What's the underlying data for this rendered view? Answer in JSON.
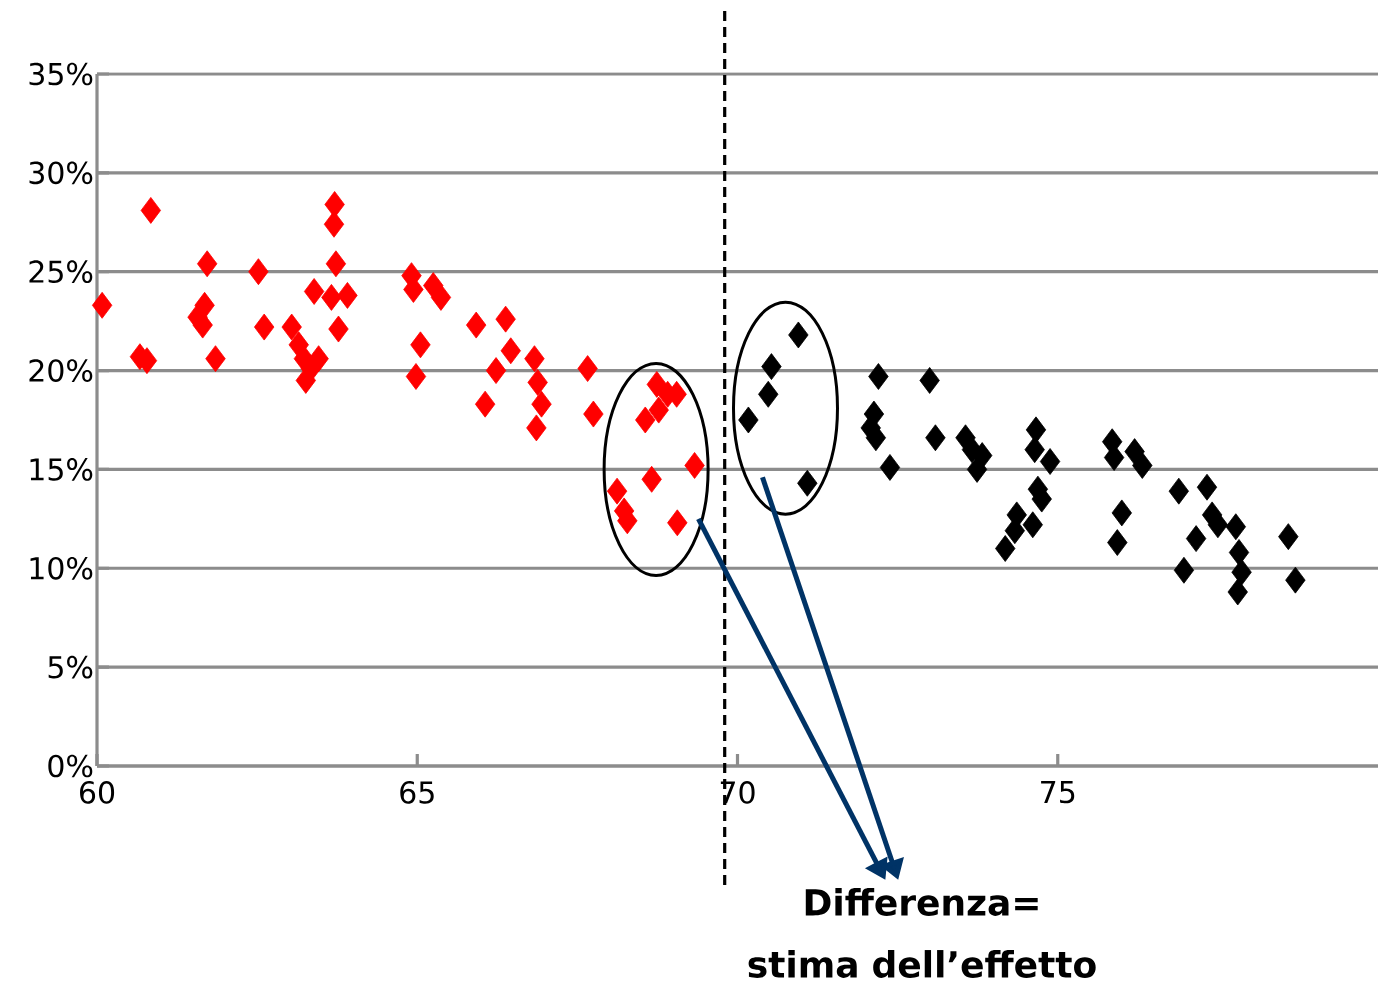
{
  "chart_data": {
    "type": "scatter",
    "xlim": [
      60,
      80
    ],
    "ylim": [
      0,
      35
    ],
    "xticks": [
      60,
      65,
      70,
      75
    ],
    "yticks": [
      {
        "value": 0,
        "label": "0%"
      },
      {
        "value": 5,
        "label": "5%"
      },
      {
        "value": 10,
        "label": "10%"
      },
      {
        "value": 15,
        "label": "15%"
      },
      {
        "value": 20,
        "label": "20%"
      },
      {
        "value": 25,
        "label": "25%"
      },
      {
        "value": 30,
        "label": "30%"
      },
      {
        "value": 35,
        "label": "35%"
      }
    ],
    "grid": "y",
    "marker": "diamond",
    "ref_lines": [
      {
        "axis": "x",
        "value": 69.8,
        "color": "#000000",
        "line_style": "dashed"
      }
    ],
    "annotations": [
      "Differenza= stima dell’effetto"
    ],
    "series": [
      {
        "color": "#ff0000",
        "x": [
          60.08,
          60.67,
          60.78,
          60.84,
          61.57,
          61.68,
          61.65,
          61.72,
          61.85,
          62.52,
          62.61,
          63.04,
          63.15,
          63.23,
          63.26,
          63.34,
          63.46,
          63.39,
          63.71,
          63.7,
          63.73,
          63.66,
          63.77,
          63.91,
          64.91,
          64.94,
          65.05,
          64.98,
          65.25,
          65.37,
          65.92,
          66.06,
          66.38,
          66.23,
          66.46,
          66.83,
          66.88,
          66.94,
          66.86,
          67.66,
          67.75,
          68.12,
          68.23,
          68.28,
          68.56,
          68.66,
          68.74,
          68.77,
          68.91,
          69.05,
          69.06,
          69.33
        ],
        "values": [
          23.3,
          20.7,
          20.5,
          28.1,
          22.7,
          23.3,
          22.3,
          25.4,
          20.6,
          25.0,
          22.2,
          22.2,
          21.3,
          20.6,
          19.5,
          20.1,
          20.6,
          24.0,
          28.4,
          27.4,
          25.4,
          23.7,
          22.1,
          23.8,
          24.8,
          24.1,
          21.3,
          19.7,
          24.3,
          23.7,
          22.3,
          18.3,
          22.6,
          20.0,
          21.0,
          20.6,
          19.4,
          18.3,
          17.1,
          20.1,
          17.8,
          13.9,
          12.9,
          12.4,
          17.5,
          14.5,
          19.3,
          18.0,
          18.8,
          18.8,
          12.3,
          15.2
        ]
      },
      {
        "color": "#000000",
        "x": [
          70.17,
          70.48,
          70.53,
          70.95,
          71.09,
          72.2,
          72.13,
          72.08,
          72.16,
          72.38,
          73.0,
          73.09,
          73.56,
          73.66,
          73.74,
          73.82,
          74.18,
          74.33,
          74.36,
          74.61,
          74.66,
          74.64,
          74.69,
          74.75,
          74.88,
          75.85,
          75.88,
          76.0,
          75.93,
          76.2,
          76.32,
          76.89,
          76.97,
          77.16,
          77.33,
          77.41,
          77.5,
          77.78,
          77.83,
          77.87,
          77.81,
          78.6,
          78.71
        ],
        "values": [
          17.5,
          18.8,
          20.2,
          21.8,
          14.3,
          19.7,
          17.8,
          17.1,
          16.6,
          15.1,
          19.5,
          16.6,
          16.6,
          16.0,
          15.0,
          15.7,
          11.0,
          11.9,
          12.7,
          12.2,
          17.0,
          16.0,
          14.0,
          13.5,
          15.4,
          16.4,
          15.6,
          12.8,
          11.3,
          15.9,
          15.2,
          13.9,
          9.9,
          11.5,
          14.1,
          12.7,
          12.2,
          12.1,
          10.8,
          9.8,
          8.8,
          11.6,
          9.4
        ]
      }
    ]
  }
}
